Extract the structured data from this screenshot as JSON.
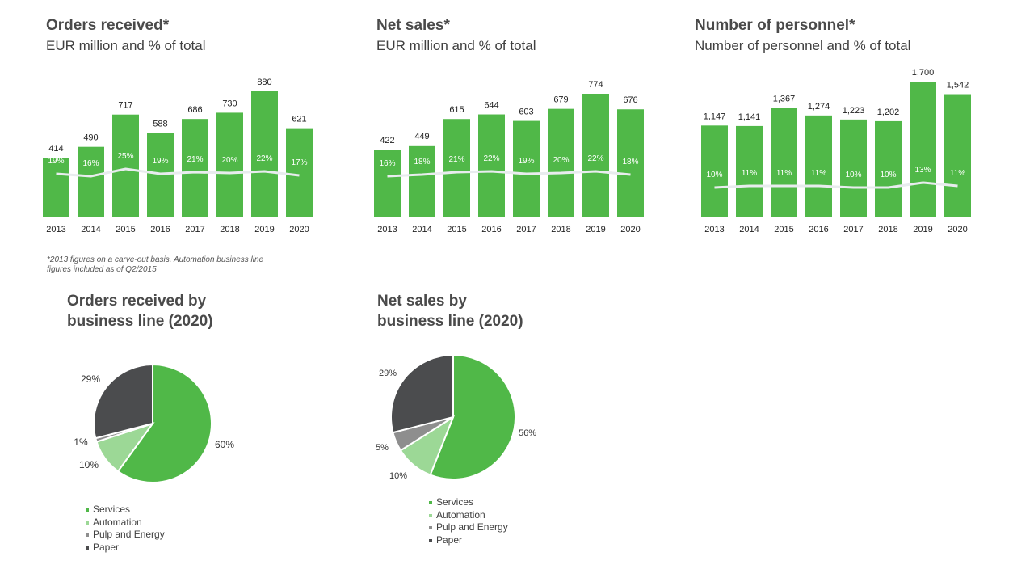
{
  "colors": {
    "bar": "#50b848",
    "line": "#e8ecee",
    "axis": "#c8c8c8",
    "services": "#50b848",
    "automation": "#9cd896",
    "pulp_energy": "#8e8e8e",
    "paper": "#4b4c4e"
  },
  "footnote": "*2013 figures on a carve-out basis. Automation business line figures included as of Q2/2015",
  "chart_data": [
    {
      "type": "bar",
      "title": "Orders received*",
      "subtitle": "EUR million and % of total",
      "categories": [
        "2013",
        "2014",
        "2015",
        "2016",
        "2017",
        "2018",
        "2019",
        "2020"
      ],
      "values": [
        414,
        490,
        717,
        588,
        686,
        730,
        880,
        621
      ],
      "value_labels": [
        "414",
        "490",
        "717",
        "588",
        "686",
        "730",
        "880",
        "621"
      ],
      "share_line": [
        19,
        16,
        25,
        19,
        21,
        20,
        22,
        17
      ],
      "share_labels": [
        "19%",
        "16%",
        "25%",
        "19%",
        "21%",
        "20%",
        "22%",
        "17%"
      ]
    },
    {
      "type": "bar",
      "title": "Net sales*",
      "subtitle": "EUR million and % of total",
      "categories": [
        "2013",
        "2014",
        "2015",
        "2016",
        "2017",
        "2018",
        "2019",
        "2020"
      ],
      "values": [
        422,
        449,
        615,
        644,
        603,
        679,
        774,
        676
      ],
      "value_labels": [
        "422",
        "449",
        "615",
        "644",
        "603",
        "679",
        "774",
        "676"
      ],
      "share_line": [
        16,
        18,
        21,
        22,
        19,
        20,
        22,
        18
      ],
      "share_labels": [
        "16%",
        "18%",
        "21%",
        "22%",
        "19%",
        "20%",
        "22%",
        "18%"
      ]
    },
    {
      "type": "bar",
      "title": "Number of personnel*",
      "subtitle": "Number of personnel and % of total",
      "categories": [
        "2013",
        "2014",
        "2015",
        "2016",
        "2017",
        "2018",
        "2019",
        "2020"
      ],
      "values": [
        1147,
        1141,
        1367,
        1274,
        1223,
        1202,
        1700,
        1542
      ],
      "value_labels": [
        "1,147",
        "1,141",
        "1,367",
        "1,274",
        "1,223",
        "1,202",
        "1,700",
        "1,542"
      ],
      "share_line": [
        10,
        11,
        11,
        11,
        10,
        10,
        13,
        11
      ],
      "share_labels": [
        "10%",
        "11%",
        "11%",
        "11%",
        "10%",
        "10%",
        "13%",
        "11%"
      ]
    },
    {
      "type": "pie",
      "title": "Orders received by\nbusiness line (2020)",
      "slices": [
        {
          "name": "Services",
          "value": 60,
          "label": "60%"
        },
        {
          "name": "Automation",
          "value": 10,
          "label": "10%"
        },
        {
          "name": "Pulp and Energy",
          "value": 1,
          "label": "1%"
        },
        {
          "name": "Paper",
          "value": 29,
          "label": "29%"
        }
      ]
    },
    {
      "type": "pie",
      "title": "Net sales by\nbusiness line (2020)",
      "slices": [
        {
          "name": "Services",
          "value": 56,
          "label": "56%"
        },
        {
          "name": "Automation",
          "value": 10,
          "label": "10%"
        },
        {
          "name": "Pulp and Energy",
          "value": 5,
          "label": "5%"
        },
        {
          "name": "Paper",
          "value": 29,
          "label": "29%"
        }
      ]
    }
  ]
}
